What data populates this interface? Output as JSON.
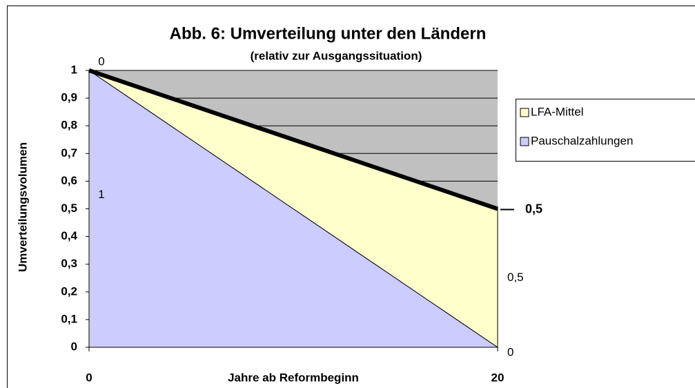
{
  "chart_data": {
    "type": "stacked_area",
    "title": "Abb. 6: Umverteilung unter den Ländern",
    "subtitle": "(relativ zur Ausgangssituation)",
    "x_label": "Jahre ab Reformbeginn",
    "y_label": "Umverteilungsvolumen",
    "x": [
      0,
      20
    ],
    "series": [
      {
        "name": "Pauschalzahlungen",
        "color": "#ccccff",
        "values": [
          1,
          0
        ],
        "value_labels": [
          "1",
          "0"
        ]
      },
      {
        "name": "LFA-Mittel",
        "color": "#ffffcc",
        "values": [
          0,
          0.5
        ],
        "value_labels": [
          "0",
          "0,5"
        ]
      }
    ],
    "legend_order": [
      1,
      0
    ],
    "annotations": [
      {
        "x": 20,
        "y": 0.5,
        "label": "0,5"
      }
    ],
    "xlim": [
      0,
      20
    ],
    "xticks": [
      0,
      20
    ],
    "ylim": [
      0,
      1
    ],
    "yticks": [
      0,
      {
        "value": 0.1,
        "label": "0,1"
      },
      {
        "value": 0.2,
        "label": "0,2"
      },
      {
        "value": 0.3,
        "label": "0,3"
      },
      {
        "value": 0.4,
        "label": "0,4"
      },
      {
        "value": 0.5,
        "label": "0,5"
      },
      {
        "value": 0.6,
        "label": "0,6"
      },
      {
        "value": 0.7,
        "label": "0,7"
      },
      {
        "value": 0.8,
        "label": "0,8"
      },
      {
        "value": 0.9,
        "label": "0,9"
      },
      1
    ],
    "grid": true,
    "plot_background": "#c0c0c0",
    "legend": "right"
  }
}
